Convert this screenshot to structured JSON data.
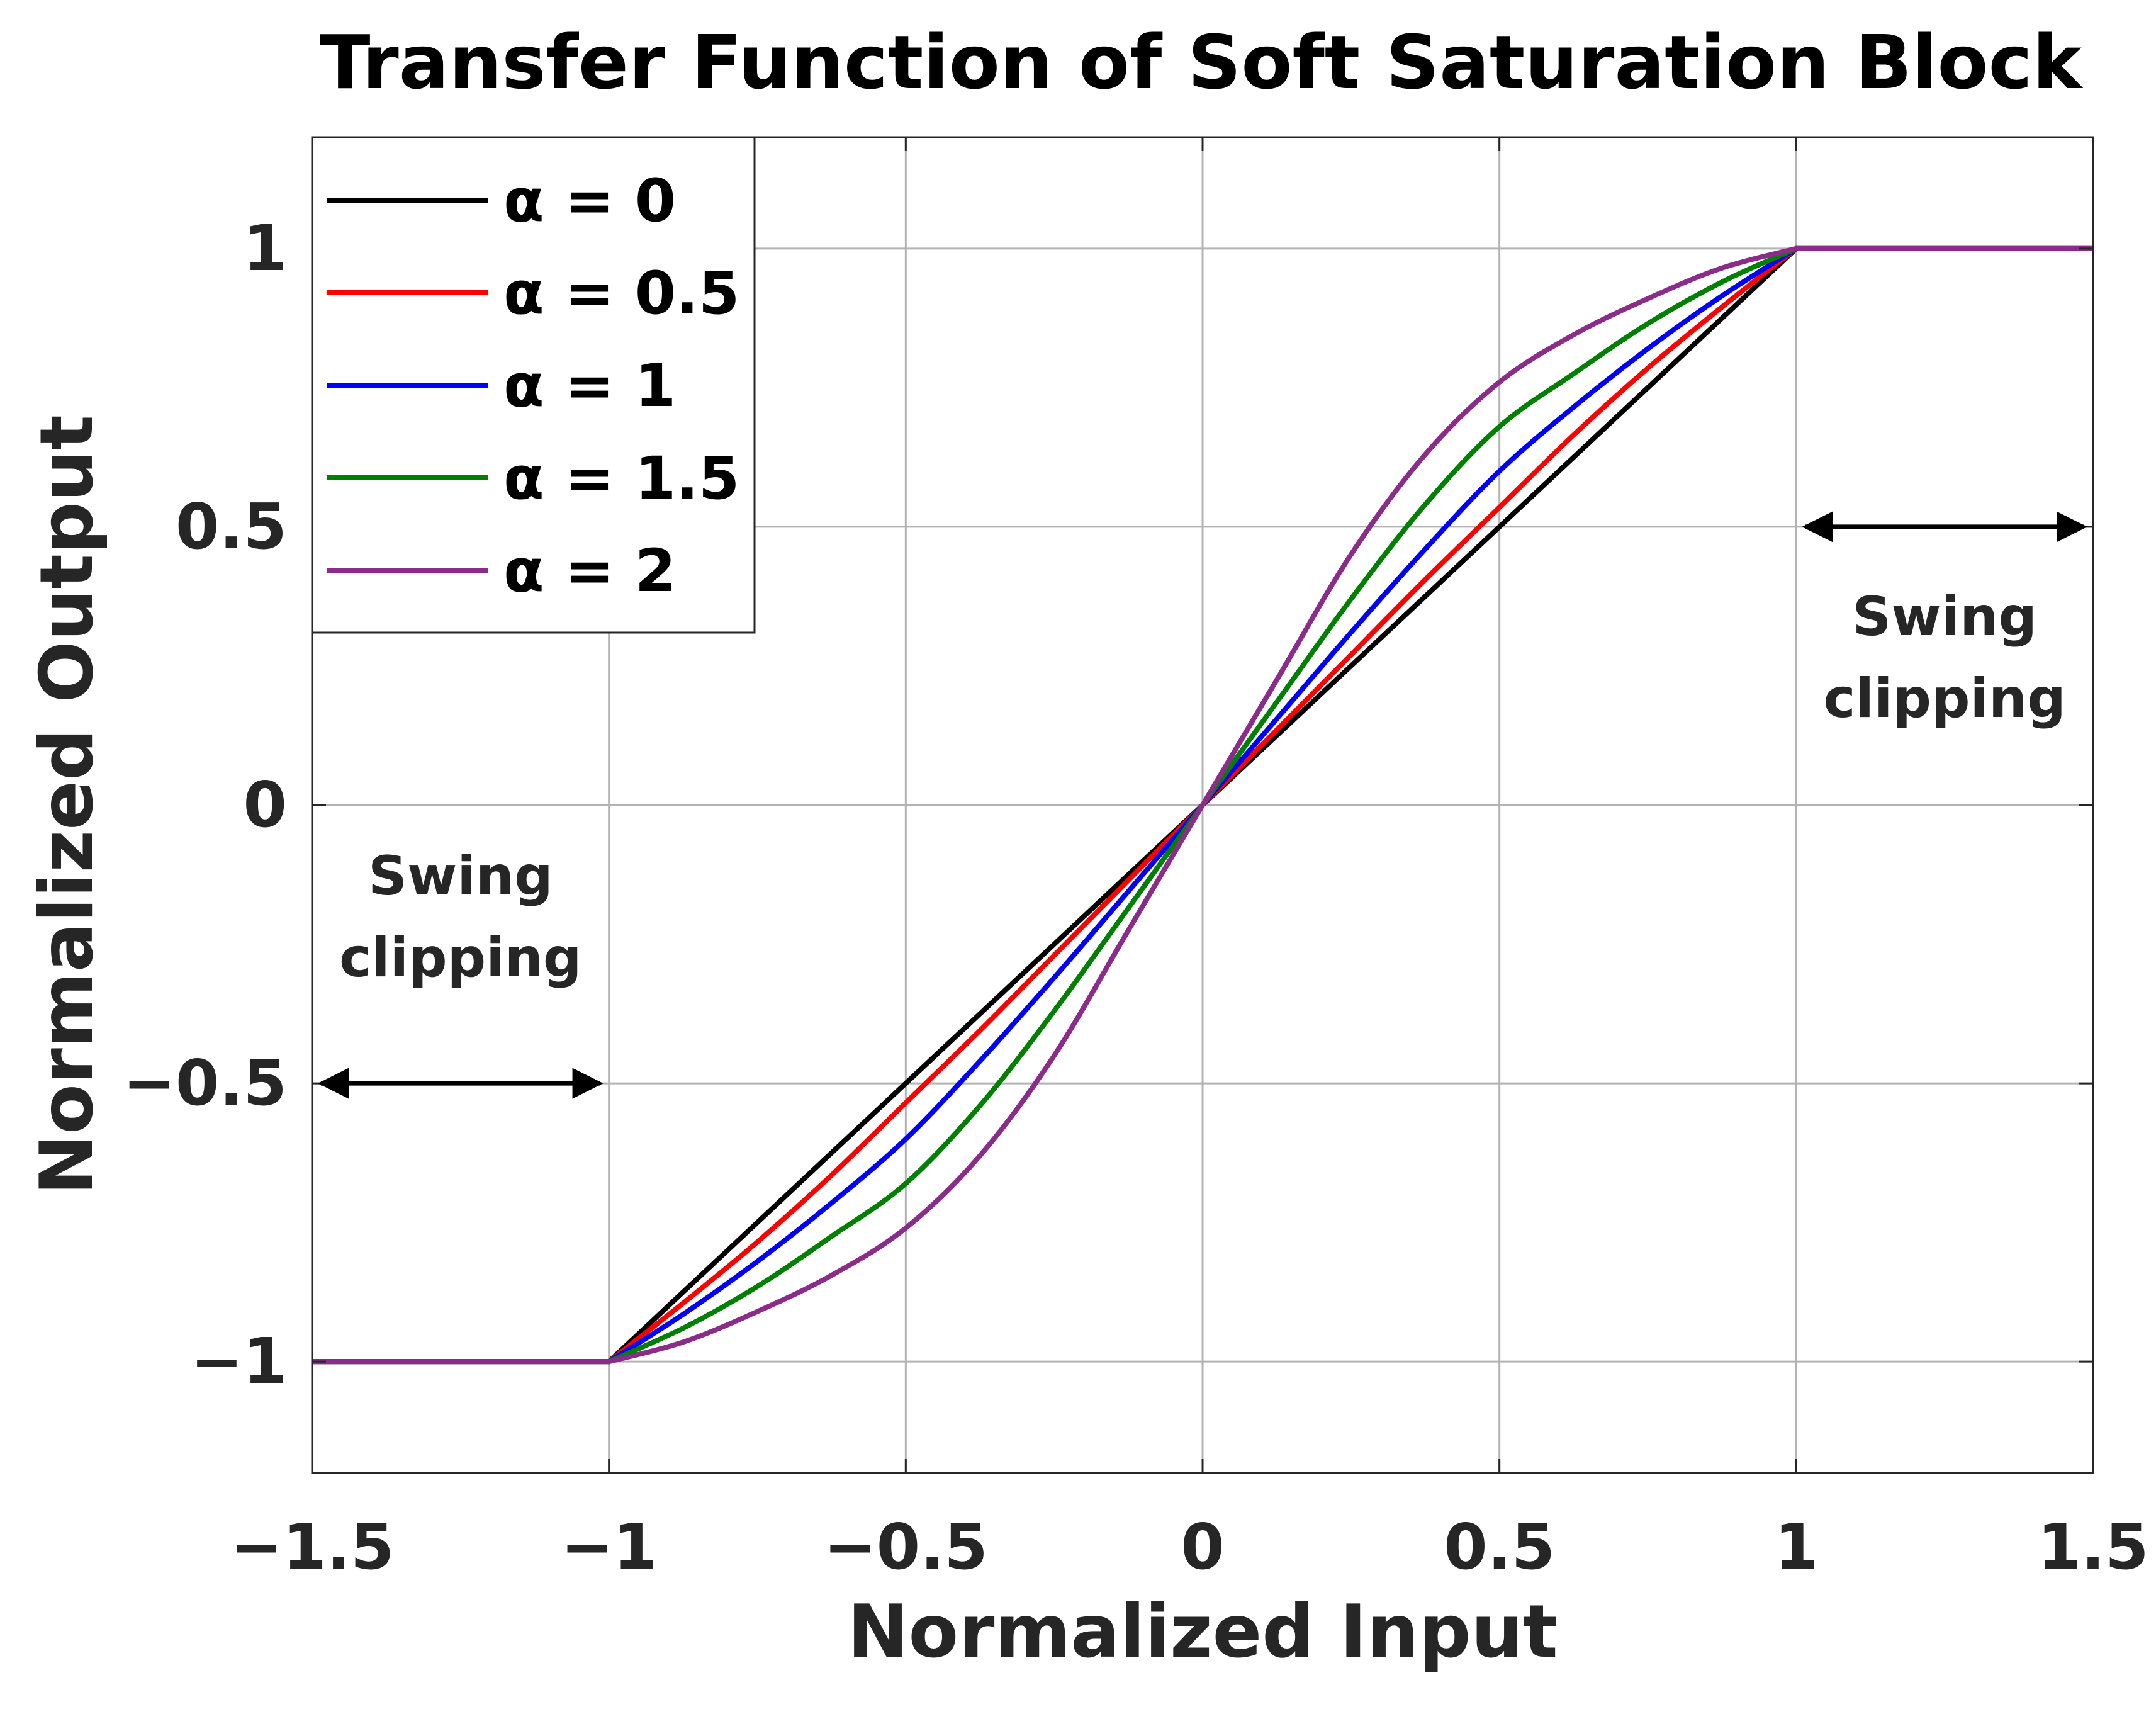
{
  "chart_data": {
    "type": "line",
    "title": "Transfer Function of Soft Saturation Block",
    "xlabel": "Normalized Input",
    "ylabel": "Normalized Output",
    "xlim": [
      -1.5,
      1.5
    ],
    "ylim": [
      -1.2,
      1.2
    ],
    "xticks": [
      -1.5,
      -1,
      -0.5,
      0,
      0.5,
      1,
      1.5
    ],
    "xtick_labels": [
      "−1.5",
      "−1",
      "−0.5",
      "0",
      "0.5",
      "1",
      "1.5"
    ],
    "yticks": [
      -1,
      -0.5,
      0,
      0.5,
      1
    ],
    "ytick_labels": [
      "−1",
      "−0.5",
      "0",
      "0.5",
      "1"
    ],
    "grid": true,
    "legend_position": "top-left",
    "x": [
      -1.5,
      -1,
      -0.875,
      -0.75,
      -0.625,
      -0.5,
      -0.375,
      -0.25,
      -0.125,
      0,
      0.125,
      0.25,
      0.375,
      0.5,
      0.625,
      0.75,
      0.875,
      1,
      1.5
    ],
    "series": [
      {
        "name": "α = 0",
        "color": "#000000",
        "values": [
          -1,
          -1,
          -0.875,
          -0.75,
          -0.625,
          -0.5,
          -0.375,
          -0.25,
          -0.125,
          0,
          0.125,
          0.25,
          0.375,
          0.5,
          0.625,
          0.75,
          0.875,
          1,
          1
        ]
      },
      {
        "name": "α = 0.5",
        "color": "#ff0000",
        "values": [
          -1,
          -1,
          -0.895,
          -0.785,
          -0.665,
          -0.535,
          -0.405,
          -0.27,
          -0.135,
          0,
          0.135,
          0.27,
          0.405,
          0.535,
          0.665,
          0.785,
          0.895,
          1,
          1
        ]
      },
      {
        "name": "α = 1",
        "color": "#0000ff",
        "values": [
          -1,
          -1,
          -0.915,
          -0.82,
          -0.715,
          -0.6,
          -0.46,
          -0.31,
          -0.155,
          0,
          0.155,
          0.31,
          0.46,
          0.6,
          0.715,
          0.82,
          0.915,
          1,
          1
        ]
      },
      {
        "name": "α = 1.5",
        "color": "#008000",
        "values": [
          -1,
          -1,
          -0.94,
          -0.865,
          -0.775,
          -0.68,
          -0.54,
          -0.37,
          -0.185,
          0,
          0.185,
          0.37,
          0.54,
          0.68,
          0.775,
          0.865,
          0.94,
          1,
          1
        ]
      },
      {
        "name": "α = 2",
        "color": "#8b2c8b",
        "values": [
          -1,
          -1,
          -0.965,
          -0.91,
          -0.845,
          -0.76,
          -0.63,
          -0.45,
          -0.225,
          0,
          0.225,
          0.45,
          0.63,
          0.76,
          0.845,
          0.91,
          0.965,
          1,
          1
        ]
      }
    ],
    "annotations": [
      {
        "line1": "Swing",
        "line2": "clipping",
        "arrow_from": [
          1,
          0.5
        ],
        "arrow_to": [
          1.5,
          0.5
        ]
      },
      {
        "line1": "Swing",
        "line2": "clipping",
        "arrow_from": [
          -1.5,
          -0.5
        ],
        "arrow_to": [
          -1,
          -0.5
        ]
      }
    ]
  }
}
